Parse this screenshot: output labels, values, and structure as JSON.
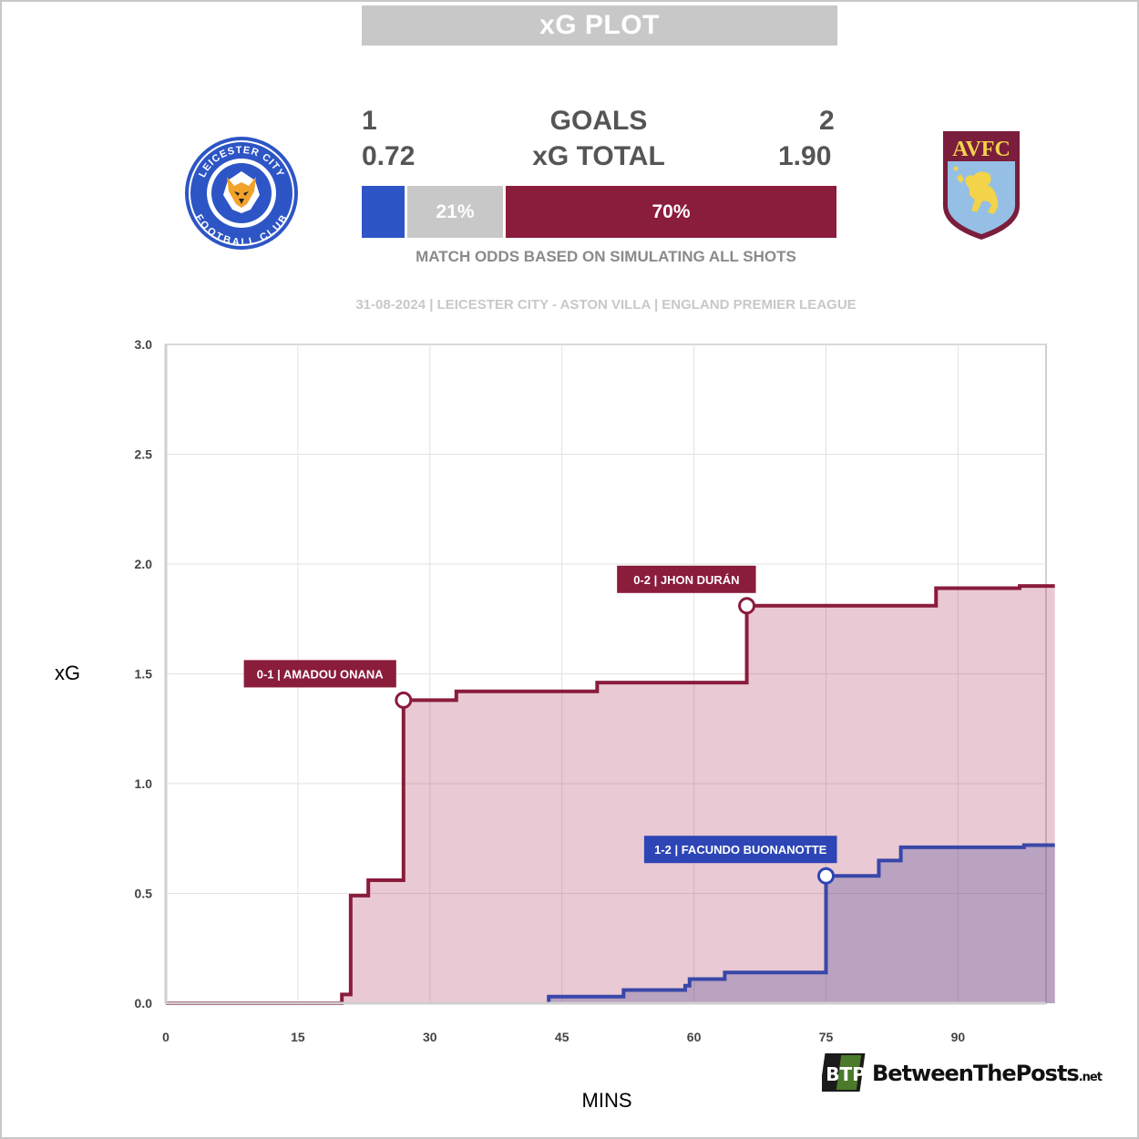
{
  "header": {
    "title": "xG PLOT",
    "home_goals": "1",
    "away_goals": "2",
    "goals_label": "GOALS",
    "home_xg": "0.72",
    "away_xg": "1.90",
    "xg_label": "xG TOTAL",
    "odds": {
      "home_win": "",
      "draw": "21%",
      "away_win": "70%",
      "home_fraction": 0.09,
      "draw_fraction": 0.21,
      "away_fraction": 0.7
    },
    "odds_note": "MATCH ODDS BASED ON SIMULATING ALL SHOTS",
    "match_info": "31-08-2024 | LEICESTER CITY - ASTON VILLA | ENGLAND PREMIER LEAGUE"
  },
  "teams": {
    "home": {
      "logo_text_top": "LEICESTER CITY",
      "logo_text_bottom": "FOOTBALL CLUB",
      "color": "#2d55c5"
    },
    "away": {
      "logo_text": "AVFC",
      "color": "#8a1c3c"
    }
  },
  "colors": {
    "home": "#3847a8",
    "away": "#8a1c3c",
    "draw": "#c8c8c8",
    "home_bar": "#2d55c5",
    "away_fill": "rgba(166,40,80,0.25)",
    "home_fill": "rgba(100,90,160,0.35)"
  },
  "chart_data": {
    "type": "line",
    "step": true,
    "xlabel": "MINS",
    "ylabel": "xG",
    "xlim": [
      0,
      100
    ],
    "ylim": [
      0,
      3
    ],
    "xticks": [
      0,
      15,
      30,
      45,
      60,
      75,
      90
    ],
    "yticks": [
      "0.0",
      "0.5",
      "1.0",
      "1.5",
      "2.0",
      "2.5",
      "3.0"
    ],
    "grid": true,
    "series": [
      {
        "name": "Aston Villa",
        "points": [
          [
            0,
            0
          ],
          [
            20,
            0
          ],
          [
            20,
            0.04
          ],
          [
            21,
            0.04
          ],
          [
            21,
            0.49
          ],
          [
            23,
            0.49
          ],
          [
            23,
            0.56
          ],
          [
            27,
            0.56
          ],
          [
            27,
            1.38
          ],
          [
            33,
            1.38
          ],
          [
            33,
            1.42
          ],
          [
            49,
            1.42
          ],
          [
            49,
            1.46
          ],
          [
            66,
            1.46
          ],
          [
            66,
            1.81
          ],
          [
            87.5,
            1.81
          ],
          [
            87.5,
            1.89
          ],
          [
            97,
            1.89
          ],
          [
            97,
            1.9
          ],
          [
            101,
            1.9
          ]
        ]
      },
      {
        "name": "Leicester City",
        "points": [
          [
            43.5,
            0
          ],
          [
            43.5,
            0.03
          ],
          [
            52,
            0.03
          ],
          [
            52,
            0.06
          ],
          [
            59,
            0.06
          ],
          [
            59,
            0.08
          ],
          [
            59.5,
            0.08
          ],
          [
            59.5,
            0.11
          ],
          [
            63.5,
            0.11
          ],
          [
            63.5,
            0.14
          ],
          [
            75,
            0.14
          ],
          [
            75,
            0.58
          ],
          [
            81,
            0.58
          ],
          [
            81,
            0.65
          ],
          [
            83.5,
            0.65
          ],
          [
            83.5,
            0.71
          ],
          [
            97.5,
            0.71
          ],
          [
            97.5,
            0.72
          ],
          [
            101,
            0.72
          ]
        ]
      }
    ],
    "annotations": [
      {
        "label": "0-1 | AMADOU ONANA",
        "team": "away",
        "x": 27,
        "y": 1.38
      },
      {
        "label": "0-2 | JHON DURÁN",
        "team": "away",
        "x": 66,
        "y": 1.81
      },
      {
        "label": "1-2 | FACUNDO BUONANOTTE",
        "team": "home",
        "x": 75,
        "y": 0.58
      }
    ]
  },
  "branding": {
    "name": "BetweenThePosts",
    "suffix": ".net",
    "badge": "BTP"
  }
}
